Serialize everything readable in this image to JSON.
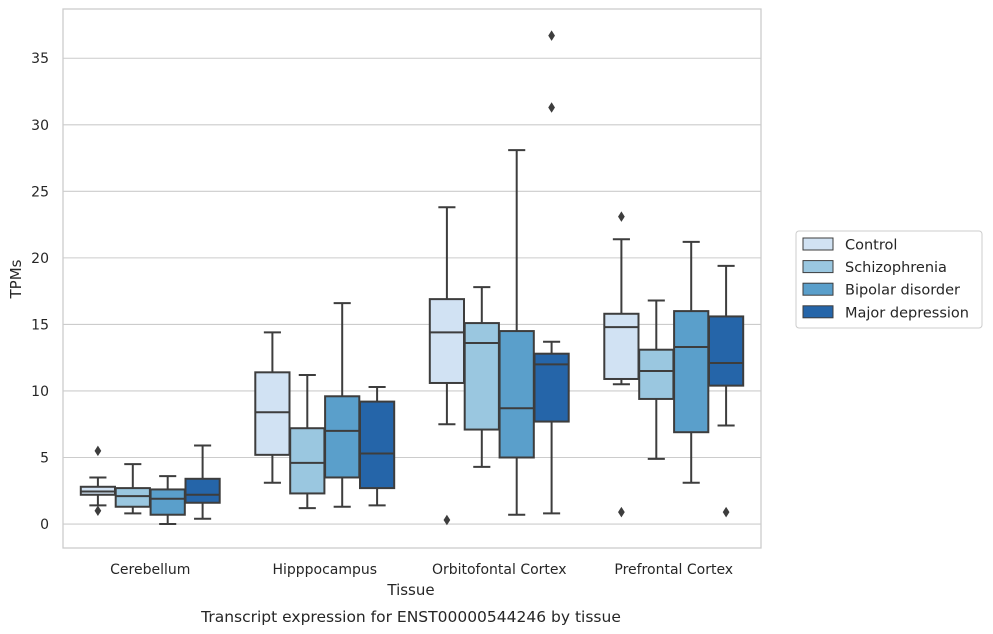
{
  "chart_data": {
    "type": "box",
    "title": "Transcript expression for ENST00000544246 by tissue",
    "xlabel": "Tissue",
    "ylabel": "TPMs",
    "ylim": [
      -1.8,
      38.7
    ],
    "yticks": [
      0,
      5,
      10,
      15,
      20,
      25,
      30,
      35
    ],
    "grid": "horizontal",
    "legend_position": "right",
    "categories": [
      "Cerebellum",
      "Hipppocampus",
      "Orbitofontal Cortex",
      "Prefrontal Cortex"
    ],
    "series": [
      {
        "name": "Control",
        "color": "#d1e2f3",
        "boxes": [
          {
            "whislo": 1.4,
            "q1": 2.2,
            "med": 2.45,
            "q3": 2.8,
            "whishi": 3.5,
            "fliers": [
              5.5,
              1.0
            ]
          },
          {
            "whislo": 3.1,
            "q1": 5.2,
            "med": 8.4,
            "q3": 11.4,
            "whishi": 14.4,
            "fliers": []
          },
          {
            "whislo": 7.5,
            "q1": 10.6,
            "med": 14.4,
            "q3": 16.9,
            "whishi": 23.8,
            "fliers": [
              0.3
            ]
          },
          {
            "whislo": 10.5,
            "q1": 10.9,
            "med": 14.8,
            "q3": 15.8,
            "whishi": 21.4,
            "fliers": [
              23.1,
              0.9
            ]
          }
        ]
      },
      {
        "name": "Schizophrenia",
        "color": "#9ac7e0",
        "boxes": [
          {
            "whislo": 0.8,
            "q1": 1.3,
            "med": 2.1,
            "q3": 2.7,
            "whishi": 4.5,
            "fliers": []
          },
          {
            "whislo": 1.2,
            "q1": 2.3,
            "med": 4.6,
            "q3": 7.2,
            "whishi": 11.2,
            "fliers": []
          },
          {
            "whislo": 4.3,
            "q1": 7.1,
            "med": 13.6,
            "q3": 15.1,
            "whishi": 17.8,
            "fliers": []
          },
          {
            "whislo": 4.9,
            "q1": 9.4,
            "med": 11.5,
            "q3": 13.1,
            "whishi": 16.8,
            "fliers": []
          }
        ]
      },
      {
        "name": "Bipolar disorder",
        "color": "#5a9fcb",
        "boxes": [
          {
            "whislo": 0.0,
            "q1": 0.7,
            "med": 1.9,
            "q3": 2.6,
            "whishi": 3.6,
            "fliers": []
          },
          {
            "whislo": 1.3,
            "q1": 3.5,
            "med": 7.0,
            "q3": 9.6,
            "whishi": 16.6,
            "fliers": []
          },
          {
            "whislo": 0.7,
            "q1": 5.0,
            "med": 8.7,
            "q3": 14.5,
            "whishi": 28.1,
            "fliers": []
          },
          {
            "whislo": 3.1,
            "q1": 6.9,
            "med": 13.3,
            "q3": 16.0,
            "whishi": 21.2,
            "fliers": []
          }
        ]
      },
      {
        "name": "Major depression",
        "color": "#2565a9",
        "boxes": [
          {
            "whislo": 0.4,
            "q1": 1.6,
            "med": 2.2,
            "q3": 3.4,
            "whishi": 5.9,
            "fliers": []
          },
          {
            "whislo": 1.4,
            "q1": 2.7,
            "med": 5.3,
            "q3": 9.2,
            "whishi": 10.3,
            "fliers": []
          },
          {
            "whislo": 0.8,
            "q1": 7.7,
            "med": 12.0,
            "q3": 12.8,
            "whishi": 13.7,
            "fliers": [
              31.3,
              36.7
            ]
          },
          {
            "whislo": 7.4,
            "q1": 10.4,
            "med": 12.1,
            "q3": 15.6,
            "whishi": 19.4,
            "fliers": [
              0.9
            ]
          }
        ]
      }
    ]
  }
}
